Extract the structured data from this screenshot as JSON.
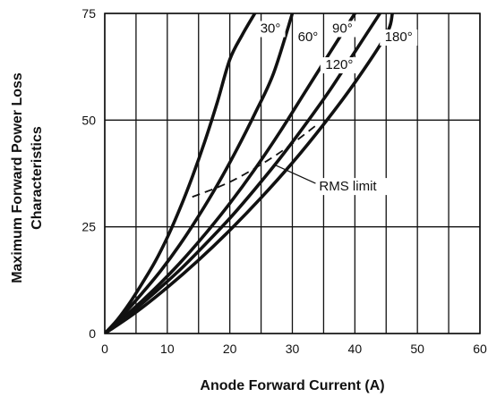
{
  "chart_data": {
    "type": "line",
    "title": "",
    "xlabel": "Anode Forward Current (A)",
    "ylabel_lines": [
      "Maximum Forward Power Loss",
      "Characteristics"
    ],
    "xlim": [
      0,
      60
    ],
    "ylim": [
      0,
      75
    ],
    "x_ticks": [
      0,
      5,
      10,
      15,
      20,
      25,
      30,
      35,
      40,
      45,
      50,
      55,
      60
    ],
    "x_tick_labels": [
      "0",
      "10",
      "20",
      "30",
      "40",
      "50",
      "60"
    ],
    "x_tick_label_values": [
      0,
      10,
      20,
      30,
      40,
      50,
      60
    ],
    "y_ticks": [
      0,
      25,
      50,
      75
    ],
    "y_tick_labels": [
      "0",
      "25",
      "50",
      "75"
    ],
    "grid": true,
    "series": [
      {
        "name": "30°",
        "x": [
          0,
          2,
          4,
          6,
          8,
          10,
          12,
          14,
          16,
          18,
          20,
          22,
          24
        ],
        "y": [
          0,
          3.2,
          7.2,
          11.8,
          16.7,
          22.5,
          29.2,
          36.7,
          45.0,
          54.2,
          64.2,
          70.0,
          75.0
        ]
      },
      {
        "name": "60°",
        "x": [
          0,
          3,
          6,
          9,
          12,
          15,
          18,
          21,
          24,
          27,
          30
        ],
        "y": [
          0,
          4.5,
          9.5,
          14.8,
          20.8,
          27.5,
          34.8,
          42.8,
          51.5,
          61.0,
          75.0
        ]
      },
      {
        "name": "90°",
        "x": [
          0,
          4,
          8,
          12,
          16,
          20,
          24,
          28,
          32,
          36,
          40
        ],
        "y": [
          0,
          5.0,
          10.5,
          16.5,
          23.2,
          30.5,
          38.5,
          47.2,
          56.5,
          65.8,
          75.0
        ]
      },
      {
        "name": "120°",
        "x": [
          0,
          4,
          8,
          12,
          16,
          20,
          24,
          28,
          32,
          36,
          40,
          44
        ],
        "y": [
          0,
          4.6,
          9.6,
          14.9,
          20.8,
          27.0,
          33.8,
          41.0,
          48.8,
          57.0,
          66.0,
          75.0
        ]
      },
      {
        "name": "180°",
        "x": [
          0,
          5,
          10,
          15,
          20,
          25,
          30,
          35,
          40,
          45,
          46
        ],
        "y": [
          0,
          5.0,
          10.8,
          17.2,
          24.2,
          31.8,
          40.0,
          49.0,
          58.8,
          70.0,
          75.0
        ]
      }
    ],
    "rms_limit": {
      "label": "RMS limit",
      "x": [
        14,
        20,
        26,
        30,
        34
      ],
      "y": [
        32,
        35.5,
        40.5,
        44.5,
        49
      ]
    },
    "series_label_positions_data": [
      {
        "name": "30°",
        "x": 26.5,
        "y": 70.5
      },
      {
        "name": "60°",
        "x": 32.5,
        "y": 68.5
      },
      {
        "name": "90°",
        "x": 38.0,
        "y": 70.5
      },
      {
        "name": "120°",
        "x": 37.5,
        "y": 62.0
      },
      {
        "name": "180°",
        "x": 47.0,
        "y": 68.5
      }
    ],
    "rms_label_position_data": {
      "x": 34.0,
      "y": 33.5,
      "leader_to": {
        "x": 27.2,
        "y": 39.5
      }
    }
  }
}
